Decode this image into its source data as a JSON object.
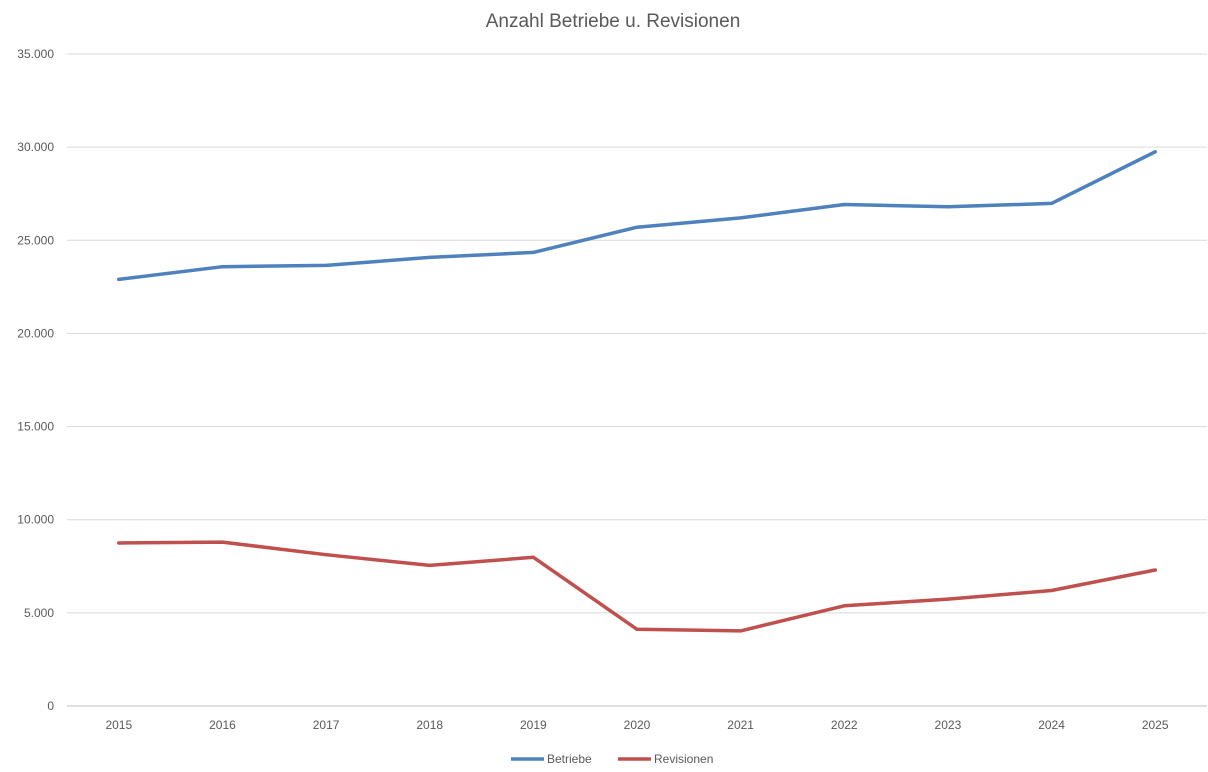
{
  "chart_data": {
    "type": "line",
    "title": "Anzahl Betriebe u. Revisionen",
    "xlabel": "",
    "ylabel": "",
    "categories": [
      "2015",
      "2016",
      "2017",
      "2018",
      "2019",
      "2020",
      "2021",
      "2022",
      "2023",
      "2024",
      "2025"
    ],
    "ylim": [
      0,
      35000
    ],
    "yticks": [
      0,
      5000,
      10000,
      15000,
      20000,
      25000,
      30000,
      35000
    ],
    "ytick_labels": [
      "0",
      "5.000",
      "10.000",
      "15.000",
      "20.000",
      "25.000",
      "30.000",
      "35.000"
    ],
    "grid": true,
    "legend_position": "bottom",
    "series": [
      {
        "name": "Betriebe",
        "color": "#4f81bd",
        "values": [
          22900,
          23580,
          23650,
          24080,
          24350,
          25700,
          26200,
          26920,
          26800,
          26980,
          29750
        ]
      },
      {
        "name": "Revisionen",
        "color": "#c0504d",
        "values": [
          8750,
          8800,
          8120,
          7550,
          7980,
          4120,
          4030,
          5380,
          5740,
          6200,
          7300
        ]
      }
    ]
  }
}
